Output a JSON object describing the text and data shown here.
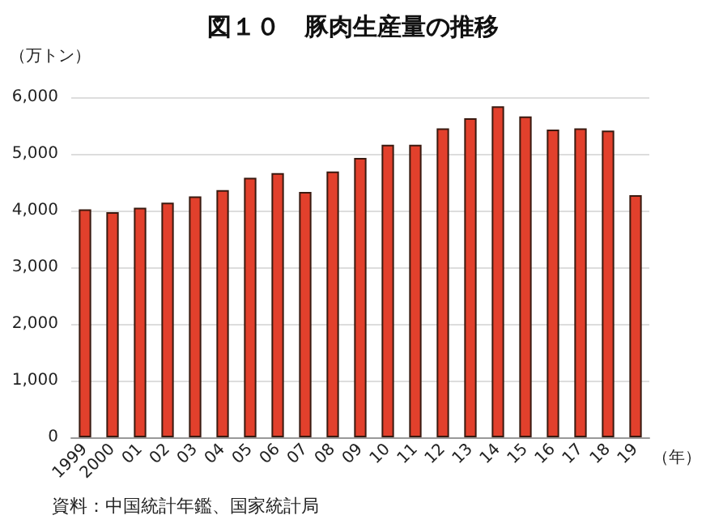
{
  "chart_data": {
    "type": "bar",
    "title": "図１０　豚肉生産量の推移",
    "ylabel": "（万トン）",
    "xlabel": "（年）",
    "categories": [
      "1999",
      "2000",
      "01",
      "02",
      "03",
      "04",
      "05",
      "06",
      "07",
      "08",
      "09",
      "10",
      "11",
      "12",
      "13",
      "14",
      "15",
      "16",
      "17",
      "18",
      "19"
    ],
    "values": [
      4020,
      3970,
      4050,
      4140,
      4250,
      4360,
      4580,
      4660,
      4330,
      4690,
      4930,
      5160,
      5160,
      5450,
      5630,
      5840,
      5660,
      5430,
      5450,
      5410,
      4270
    ],
    "color": "#e2402c",
    "ylim": [
      0,
      6000
    ],
    "yticks": [
      0,
      {
        "value": 1000,
        "label": "1,000"
      },
      {
        "value": 2000,
        "label": "2,000"
      },
      {
        "value": 3000,
        "label": "3,000"
      },
      {
        "value": 4000,
        "label": "4,000"
      },
      {
        "value": 5000,
        "label": "5,000"
      },
      {
        "value": 6000,
        "label": "6,000"
      }
    ],
    "grid": "y",
    "annotations": [
      "資料：中国統計年鑑、国家統計局"
    ]
  }
}
